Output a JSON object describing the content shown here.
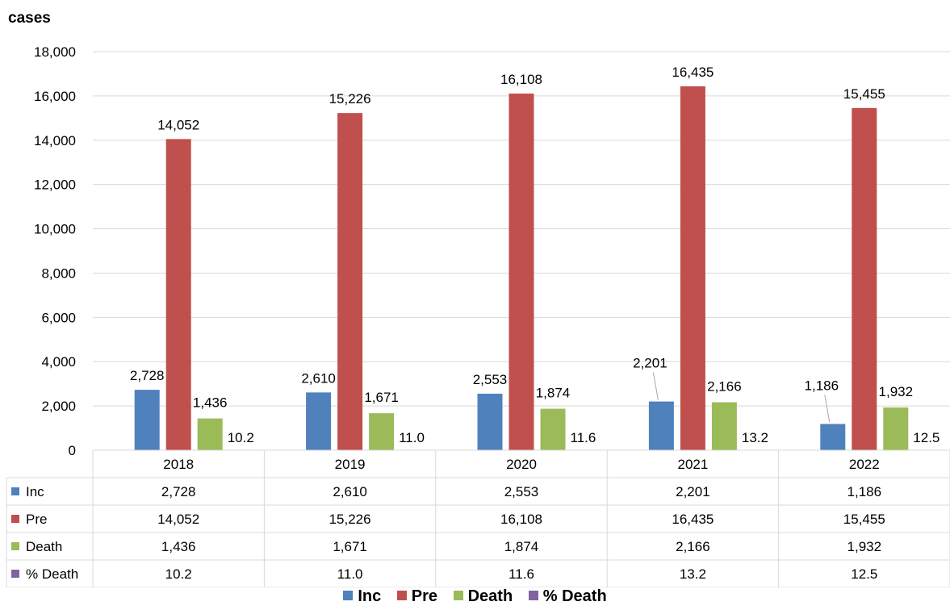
{
  "chart_data": {
    "type": "bar",
    "ylabel": "cases",
    "ylim": [
      0,
      18000
    ],
    "yticks": [
      0,
      2000,
      4000,
      6000,
      8000,
      10000,
      12000,
      14000,
      16000,
      18000
    ],
    "ytick_labels": [
      "0",
      "2,000",
      "4,000",
      "6,000",
      "8,000",
      "10,000",
      "12,000",
      "14,000",
      "16,000",
      "18,000"
    ],
    "categories": [
      "2018",
      "2019",
      "2020",
      "2021",
      "2022"
    ],
    "grid": true,
    "legend_position": "bottom",
    "data_table": true,
    "series": [
      {
        "name": "Inc",
        "color": "#4F81BD",
        "plotted": true,
        "values": [
          2728,
          2610,
          2553,
          2201,
          1186
        ],
        "labels": [
          "2,728",
          "2,610",
          "2,553",
          "2,201",
          "1,186"
        ]
      },
      {
        "name": "Pre",
        "color": "#C0504D",
        "plotted": true,
        "values": [
          14052,
          15226,
          16108,
          16435,
          15455
        ],
        "labels": [
          "14,052",
          "15,226",
          "16,108",
          "16,435",
          "15,455"
        ]
      },
      {
        "name": "Death",
        "color": "#9BBB59",
        "plotted": true,
        "values": [
          1436,
          1671,
          1874,
          2166,
          1932
        ],
        "labels": [
          "1,436",
          "1,671",
          "1,874",
          "2,166",
          "1,932"
        ]
      },
      {
        "name": "% Death",
        "color": "#8064A2",
        "plotted": false,
        "values": [
          10.2,
          11.0,
          11.6,
          13.2,
          12.5
        ],
        "labels": [
          "10.2",
          "11.0",
          "11.6",
          "13.2",
          "12.5"
        ]
      }
    ]
  }
}
